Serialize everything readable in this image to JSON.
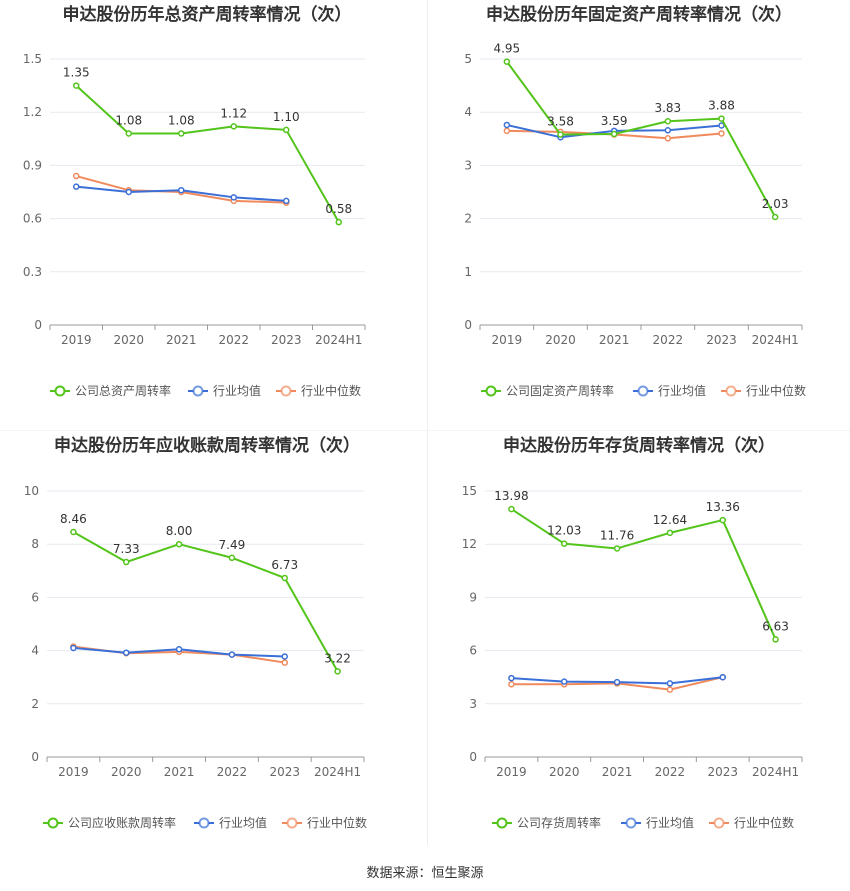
{
  "source_label": "数据来源：恒生聚源",
  "chart_data": [
    {
      "type": "line",
      "title": "申达股份历年总资产周转率情况（次）",
      "categories": [
        "2019",
        "2020",
        "2021",
        "2022",
        "2023",
        "2024H1"
      ],
      "ylim": [
        0,
        1.5
      ],
      "yticks": [
        "0",
        "0.3",
        "0.6",
        "0.9",
        "1.2",
        "1.5"
      ],
      "series": [
        {
          "name": "公司总资产周转率",
          "color": "#52c41a",
          "values": [
            1.35,
            1.08,
            1.08,
            1.12,
            1.1,
            0.58
          ],
          "labels": [
            "1.35",
            "1.08",
            "1.08",
            "1.12",
            "1.10",
            "0.58"
          ]
        },
        {
          "name": "行业均值",
          "color": "#3a6fd8",
          "values": [
            0.78,
            0.75,
            0.76,
            0.72,
            0.7,
            null
          ]
        },
        {
          "name": "行业中位数",
          "color": "#f08a5d",
          "values": [
            0.84,
            0.76,
            0.75,
            0.7,
            0.69,
            null
          ]
        }
      ]
    },
    {
      "type": "line",
      "title": "申达股份历年固定资产周转率情况（次）",
      "categories": [
        "2019",
        "2020",
        "2021",
        "2022",
        "2023",
        "2024H1"
      ],
      "ylim": [
        0,
        5
      ],
      "yticks": [
        "0",
        "1",
        "2",
        "3",
        "4",
        "5"
      ],
      "series": [
        {
          "name": "公司固定资产周转率",
          "color": "#52c41a",
          "values": [
            4.95,
            3.58,
            3.59,
            3.83,
            3.88,
            2.03
          ],
          "labels": [
            "4.95",
            "3.58",
            "3.59",
            "3.83",
            "3.88",
            "2.03"
          ]
        },
        {
          "name": "行业均值",
          "color": "#3a6fd8",
          "values": [
            3.76,
            3.53,
            3.65,
            3.66,
            3.75,
            null
          ]
        },
        {
          "name": "行业中位数",
          "color": "#f08a5d",
          "values": [
            3.65,
            3.63,
            3.58,
            3.51,
            3.6,
            null
          ]
        }
      ]
    },
    {
      "type": "line",
      "title": "申达股份历年应收账款周转率情况（次）",
      "categories": [
        "2019",
        "2020",
        "2021",
        "2022",
        "2023",
        "2024H1"
      ],
      "ylim": [
        0,
        10
      ],
      "yticks": [
        "0",
        "2",
        "4",
        "6",
        "8",
        "10"
      ],
      "series": [
        {
          "name": "公司应收账款周转率",
          "color": "#52c41a",
          "values": [
            8.46,
            7.33,
            8.0,
            7.49,
            6.73,
            3.22
          ],
          "labels": [
            "8.46",
            "7.33",
            "8.00",
            "7.49",
            "6.73",
            "3.22"
          ]
        },
        {
          "name": "行业均值",
          "color": "#3a6fd8",
          "values": [
            4.1,
            3.92,
            4.05,
            3.85,
            3.78,
            null
          ]
        },
        {
          "name": "行业中位数",
          "color": "#f08a5d",
          "values": [
            4.15,
            3.9,
            3.95,
            3.85,
            3.55,
            null
          ]
        }
      ]
    },
    {
      "type": "line",
      "title": "申达股份历年存货周转率情况（次）",
      "categories": [
        "2019",
        "2020",
        "2021",
        "2022",
        "2023",
        "2024H1"
      ],
      "ylim": [
        0,
        15
      ],
      "yticks": [
        "0",
        "3",
        "6",
        "9",
        "12",
        "15"
      ],
      "series": [
        {
          "name": "公司存货周转率",
          "color": "#52c41a",
          "values": [
            13.98,
            12.03,
            11.76,
            12.64,
            13.36,
            6.63
          ],
          "labels": [
            "13.98",
            "12.03",
            "11.76",
            "12.64",
            "13.36",
            "6.63"
          ]
        },
        {
          "name": "行业均值",
          "color": "#3a6fd8",
          "values": [
            4.45,
            4.25,
            4.22,
            4.15,
            4.5,
            null
          ]
        },
        {
          "name": "行业中位数",
          "color": "#f08a5d",
          "values": [
            4.1,
            4.1,
            4.15,
            3.8,
            4.5,
            null
          ]
        }
      ]
    }
  ]
}
